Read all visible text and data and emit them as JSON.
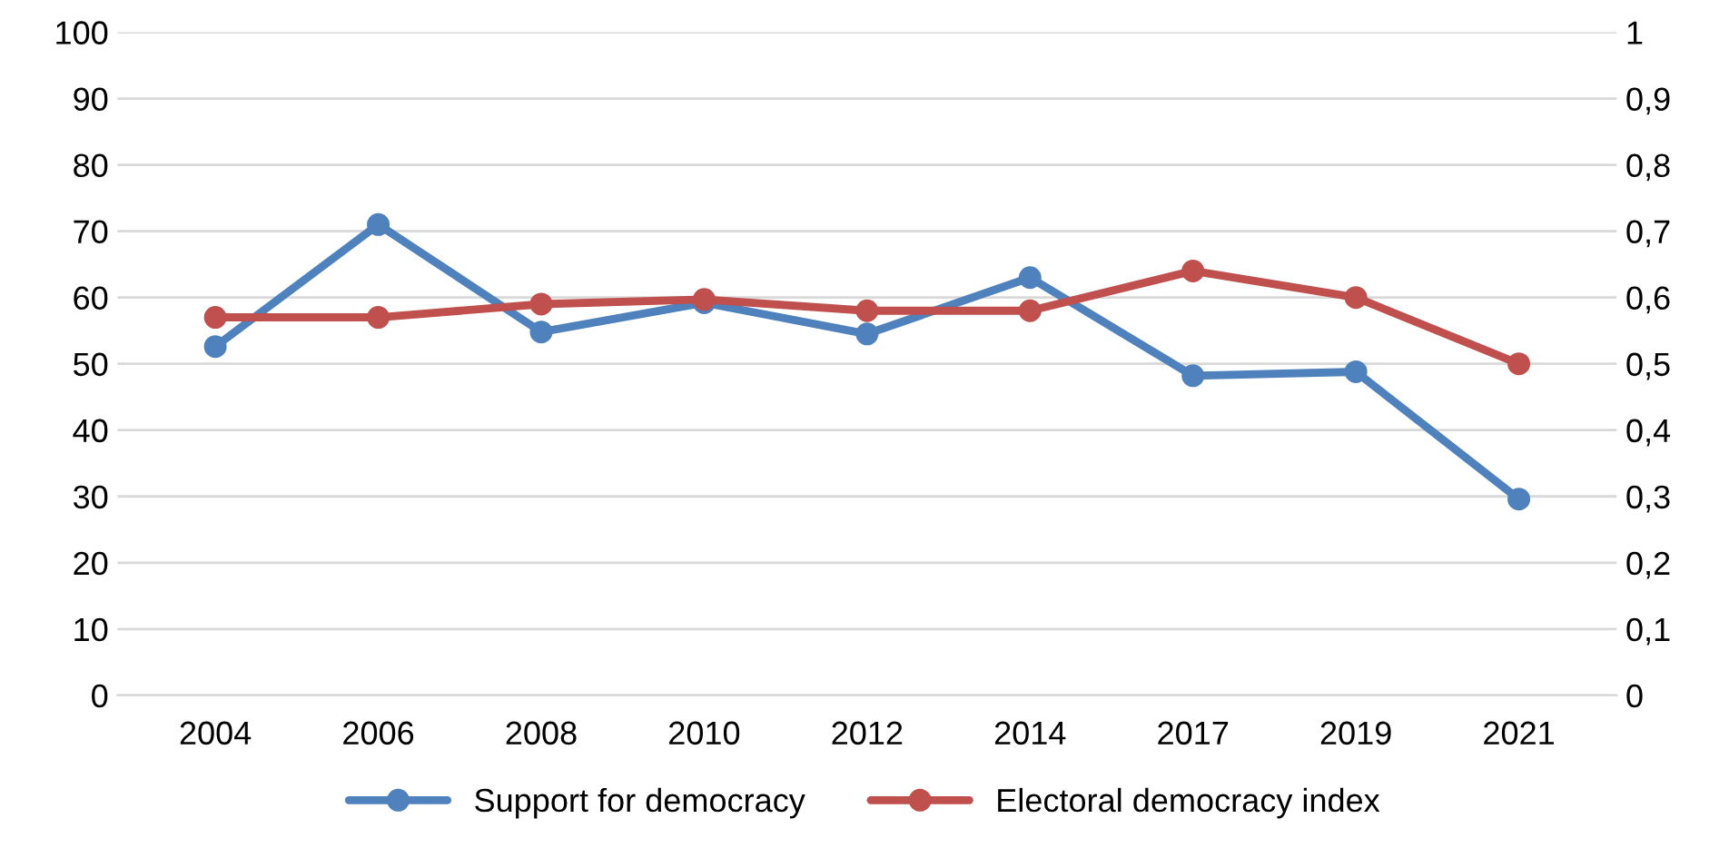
{
  "chart_data": {
    "type": "line",
    "categories": [
      "2004",
      "2006",
      "2008",
      "2010",
      "2012",
      "2014",
      "2017",
      "2019",
      "2021"
    ],
    "series": [
      {
        "name": "Support for democracy",
        "color": "#4f81bd",
        "values": [
          52.6,
          71,
          54.8,
          59.2,
          54.5,
          63,
          48.2,
          48.8,
          29.6
        ]
      },
      {
        "name": "Electoral democracy index",
        "color": "#c0504d",
        "axis": "y2",
        "values": [
          0.57,
          0.57,
          0.59,
          0.597,
          0.58,
          0.58,
          0.64,
          0.6,
          0.5
        ]
      }
    ],
    "ylim": [
      0,
      100
    ],
    "yticks": [
      0,
      10,
      20,
      30,
      40,
      50,
      60,
      70,
      80,
      90,
      100
    ],
    "y2lim": [
      0,
      1
    ],
    "y2ticks": [
      0,
      {
        "value": 0.1,
        "label": "0,1"
      },
      {
        "value": 0.2,
        "label": "0,2"
      },
      {
        "value": 0.3,
        "label": "0,3"
      },
      {
        "value": 0.4,
        "label": "0,4"
      },
      {
        "value": 0.5,
        "label": "0,5"
      },
      {
        "value": 0.6,
        "label": "0,6"
      },
      {
        "value": 0.7,
        "label": "0,7"
      },
      {
        "value": 0.8,
        "label": "0,8"
      },
      {
        "value": 0.9,
        "label": "0,9"
      },
      1
    ],
    "grid": "y",
    "legend": "bottom",
    "marker": "circle",
    "line_style": "solid"
  }
}
